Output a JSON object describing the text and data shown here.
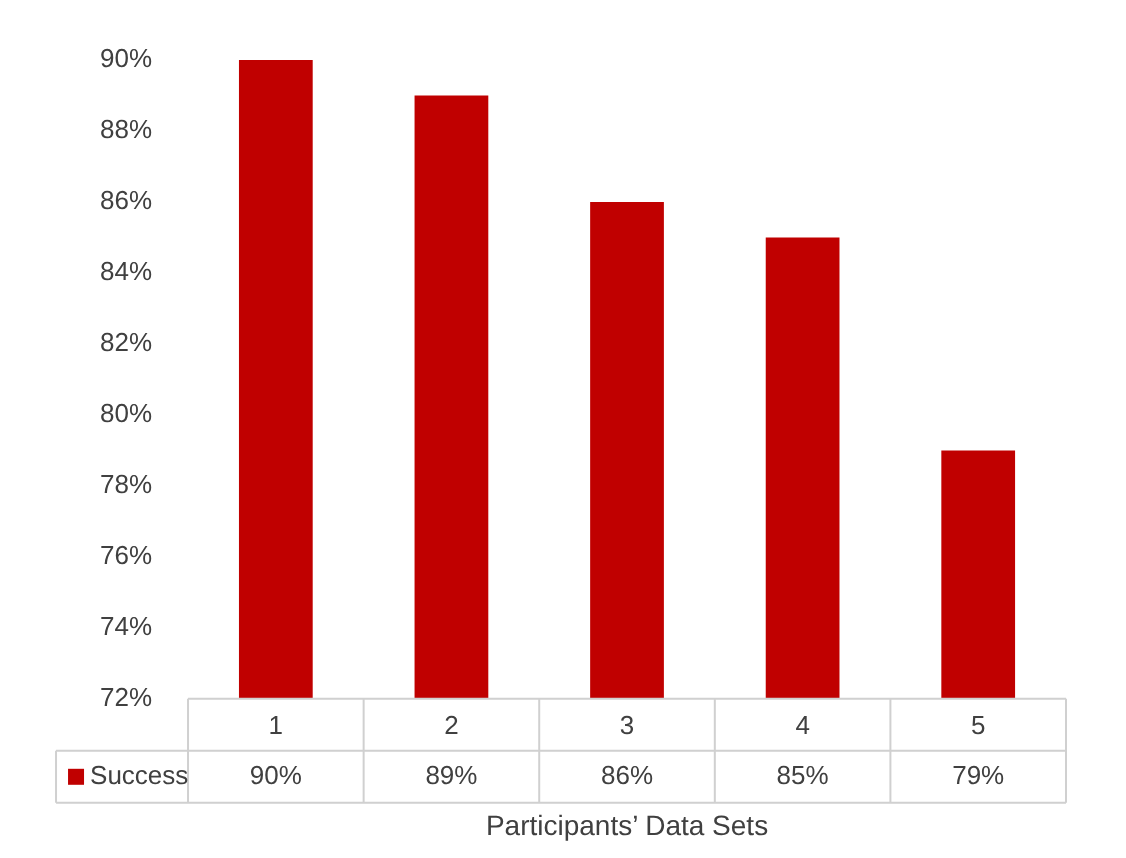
{
  "chart_data": {
    "type": "bar",
    "xlabel": "Participants’ Data Sets",
    "categories": [
      "1",
      "2",
      "3",
      "4",
      "5"
    ],
    "series": [
      {
        "name": "Success",
        "color": "#c00000",
        "values": [
          90,
          89,
          86,
          85,
          79
        ],
        "value_labels": [
          "90%",
          "89%",
          "86%",
          "85%",
          "79%"
        ]
      }
    ],
    "ylim": [
      72,
      90
    ],
    "yticks": [
      {
        "value": 72,
        "label": "72%"
      },
      {
        "value": 74,
        "label": "74%"
      },
      {
        "value": 76,
        "label": "76%"
      },
      {
        "value": 78,
        "label": "78%"
      },
      {
        "value": 80,
        "label": "80%"
      },
      {
        "value": 82,
        "label": "82%"
      },
      {
        "value": 84,
        "label": "84%"
      },
      {
        "value": 86,
        "label": "86%"
      },
      {
        "value": 88,
        "label": "88%"
      },
      {
        "value": 90,
        "label": "90%"
      }
    ],
    "grid": false,
    "legend": "bottom left"
  }
}
